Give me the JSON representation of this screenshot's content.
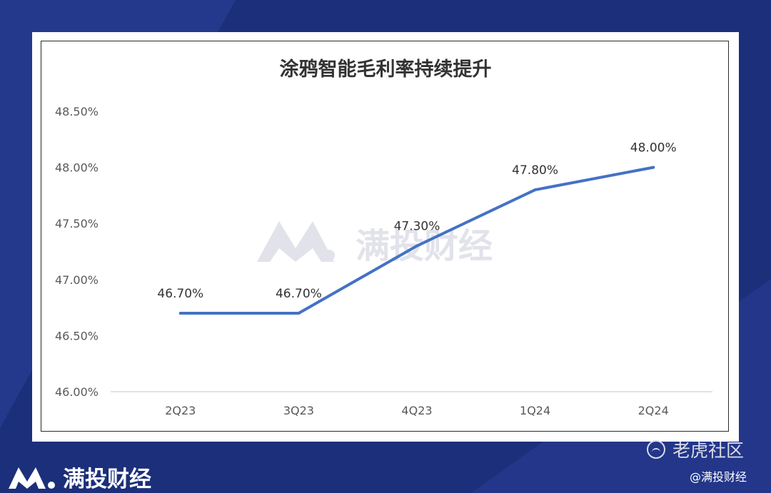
{
  "chart_data": {
    "type": "line",
    "title": "涂鸦智能毛利率持续提升",
    "categories": [
      "2Q23",
      "3Q23",
      "4Q23",
      "1Q24",
      "2Q24"
    ],
    "series": [
      {
        "values": [
          46.7,
          46.7,
          47.3,
          47.8,
          48.0
        ],
        "color": "#4472c4"
      }
    ],
    "data_labels": [
      "46.70%",
      "46.70%",
      "47.30%",
      "47.80%",
      "48.00%"
    ],
    "y_ticks": [
      "46.00%",
      "46.50%",
      "47.00%",
      "47.50%",
      "48.00%",
      "48.50%"
    ],
    "ylim": [
      46.0,
      48.5
    ],
    "grid": false,
    "xlabel": "",
    "ylabel": ""
  },
  "watermark": {
    "text": "满投财经"
  },
  "footer": {
    "brand": "满投财经",
    "community": "老虎社区",
    "handle": "@满投财经"
  },
  "colors": {
    "background": "#1c2f7a",
    "line": "#4472c4",
    "watermark": "#e2e3ea"
  },
  "icons": [
    "m-logo-icon",
    "tiger-community-icon"
  ]
}
